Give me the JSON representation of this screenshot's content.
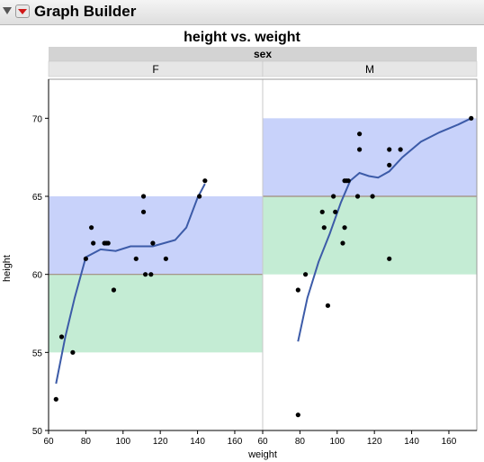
{
  "window": {
    "title": "Graph Builder"
  },
  "chart_data": {
    "type": "scatter",
    "title": "height vs. weight",
    "group_label": "sex",
    "xlabel": "weight",
    "ylabel": "height",
    "xlim": [
      60,
      175
    ],
    "ylim": [
      50,
      72.5
    ],
    "x_ticks": [
      "60",
      "80",
      "100",
      "120",
      "140",
      "160"
    ],
    "y_ticks": [
      "50",
      "55",
      "60",
      "65",
      "70"
    ],
    "grid": false,
    "colors": {
      "upper_band": "#c8d2fa",
      "lower_band": "#c4ecd4",
      "points": "#000000",
      "smoother": "#3c5ba8",
      "mean_line": "#a08c7c"
    },
    "panels": [
      {
        "label": "F",
        "upper_band": [
          60,
          65
        ],
        "lower_band": [
          55,
          60
        ],
        "points": [
          [
            64,
            52
          ],
          [
            67,
            56
          ],
          [
            73,
            55
          ],
          [
            80,
            61
          ],
          [
            83,
            63
          ],
          [
            84,
            62
          ],
          [
            90,
            62
          ],
          [
            91,
            62
          ],
          [
            92,
            62
          ],
          [
            95,
            59
          ],
          [
            107,
            61
          ],
          [
            111,
            65
          ],
          [
            111,
            64
          ],
          [
            112,
            60
          ],
          [
            115,
            60
          ],
          [
            116,
            62
          ],
          [
            123,
            61
          ],
          [
            141,
            65
          ],
          [
            144,
            66
          ]
        ],
        "smoother": [
          [
            64,
            53
          ],
          [
            69,
            56
          ],
          [
            74,
            58.5
          ],
          [
            80,
            61.1
          ],
          [
            88,
            61.6
          ],
          [
            96,
            61.5
          ],
          [
            104,
            61.8
          ],
          [
            110,
            61.8
          ],
          [
            116,
            61.8
          ],
          [
            122,
            62
          ],
          [
            128,
            62.2
          ],
          [
            134,
            63
          ],
          [
            140,
            64.9
          ],
          [
            144,
            65.8
          ]
        ]
      },
      {
        "label": "M",
        "upper_band": [
          65,
          70
        ],
        "lower_band": [
          60,
          65
        ],
        "points": [
          [
            79,
            59
          ],
          [
            79,
            51
          ],
          [
            83,
            60
          ],
          [
            92,
            64
          ],
          [
            93,
            63
          ],
          [
            95,
            58
          ],
          [
            98,
            65
          ],
          [
            99,
            64
          ],
          [
            103,
            62
          ],
          [
            104,
            63
          ],
          [
            104,
            66
          ],
          [
            105,
            66
          ],
          [
            106,
            66
          ],
          [
            111,
            65
          ],
          [
            112,
            69
          ],
          [
            112,
            68
          ],
          [
            119,
            65
          ],
          [
            128,
            68
          ],
          [
            128,
            67
          ],
          [
            128,
            61
          ],
          [
            134,
            68
          ],
          [
            172,
            70
          ]
        ],
        "smoother": [
          [
            79,
            55.7
          ],
          [
            84,
            58.5
          ],
          [
            90,
            60.8
          ],
          [
            96,
            62.6
          ],
          [
            102,
            64.6
          ],
          [
            107,
            66
          ],
          [
            112,
            66.5
          ],
          [
            117,
            66.3
          ],
          [
            122,
            66.2
          ],
          [
            128,
            66.6
          ],
          [
            135,
            67.5
          ],
          [
            145,
            68.5
          ],
          [
            155,
            69.1
          ],
          [
            165,
            69.6
          ],
          [
            172,
            70
          ]
        ]
      }
    ]
  }
}
